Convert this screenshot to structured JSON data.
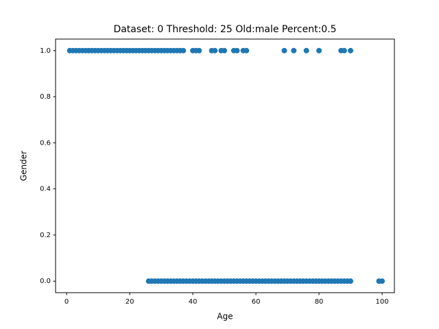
{
  "chart_data": {
    "type": "scatter",
    "title": "Dataset: 0 Threshold: 25 Old:male Percent:0.5",
    "x_label": "Age",
    "y_label": "Gender",
    "color": "#1f77b4",
    "x": [
      1,
      2,
      3,
      4,
      5,
      6,
      7,
      8,
      9,
      10,
      11,
      12,
      13,
      14,
      15,
      16,
      17,
      18,
      19,
      20,
      21,
      22,
      23,
      24,
      25,
      26,
      27,
      28,
      29,
      30,
      31,
      32,
      33,
      34,
      35,
      36,
      37,
      40,
      41,
      42,
      46,
      47,
      49,
      50,
      53,
      54,
      56,
      57,
      69,
      72,
      76,
      80,
      87,
      88,
      90,
      26,
      27,
      28,
      29,
      30,
      31,
      32,
      33,
      34,
      35,
      36,
      37,
      38,
      39,
      40,
      41,
      42,
      43,
      44,
      45,
      46,
      47,
      48,
      49,
      50,
      51,
      52,
      53,
      54,
      55,
      56,
      57,
      58,
      59,
      60,
      61,
      62,
      63,
      64,
      65,
      66,
      67,
      68,
      69,
      70,
      71,
      72,
      73,
      74,
      75,
      76,
      77,
      78,
      79,
      80,
      81,
      82,
      83,
      84,
      85,
      86,
      87,
      88,
      89,
      90,
      99,
      100
    ],
    "y": [
      1,
      1,
      1,
      1,
      1,
      1,
      1,
      1,
      1,
      1,
      1,
      1,
      1,
      1,
      1,
      1,
      1,
      1,
      1,
      1,
      1,
      1,
      1,
      1,
      1,
      1,
      1,
      1,
      1,
      1,
      1,
      1,
      1,
      1,
      1,
      1,
      1,
      1,
      1,
      1,
      1,
      1,
      1,
      1,
      1,
      1,
      1,
      1,
      1,
      1,
      1,
      1,
      1,
      1,
      1,
      0,
      0,
      0,
      0,
      0,
      0,
      0,
      0,
      0,
      0,
      0,
      0,
      0,
      0,
      0,
      0,
      0,
      0,
      0,
      0,
      0,
      0,
      0,
      0,
      0,
      0,
      0,
      0,
      0,
      0,
      0,
      0,
      0,
      0,
      0,
      0,
      0,
      0,
      0,
      0,
      0,
      0,
      0,
      0,
      0,
      0,
      0,
      0,
      0,
      0,
      0,
      0,
      0,
      0,
      0,
      0,
      0,
      0,
      0,
      0,
      0,
      0,
      0,
      0,
      0,
      0,
      0
    ],
    "xlim": [
      -3.5,
      103.9
    ],
    "ylim": [
      -0.05,
      1.05
    ],
    "xticks": [
      0,
      20,
      40,
      60,
      80,
      100
    ],
    "yticks": [
      {
        "value": 0,
        "label": "0.0"
      },
      0.2,
      0.4,
      0.6,
      0.8,
      {
        "value": 1,
        "label": "1.0"
      }
    ]
  }
}
